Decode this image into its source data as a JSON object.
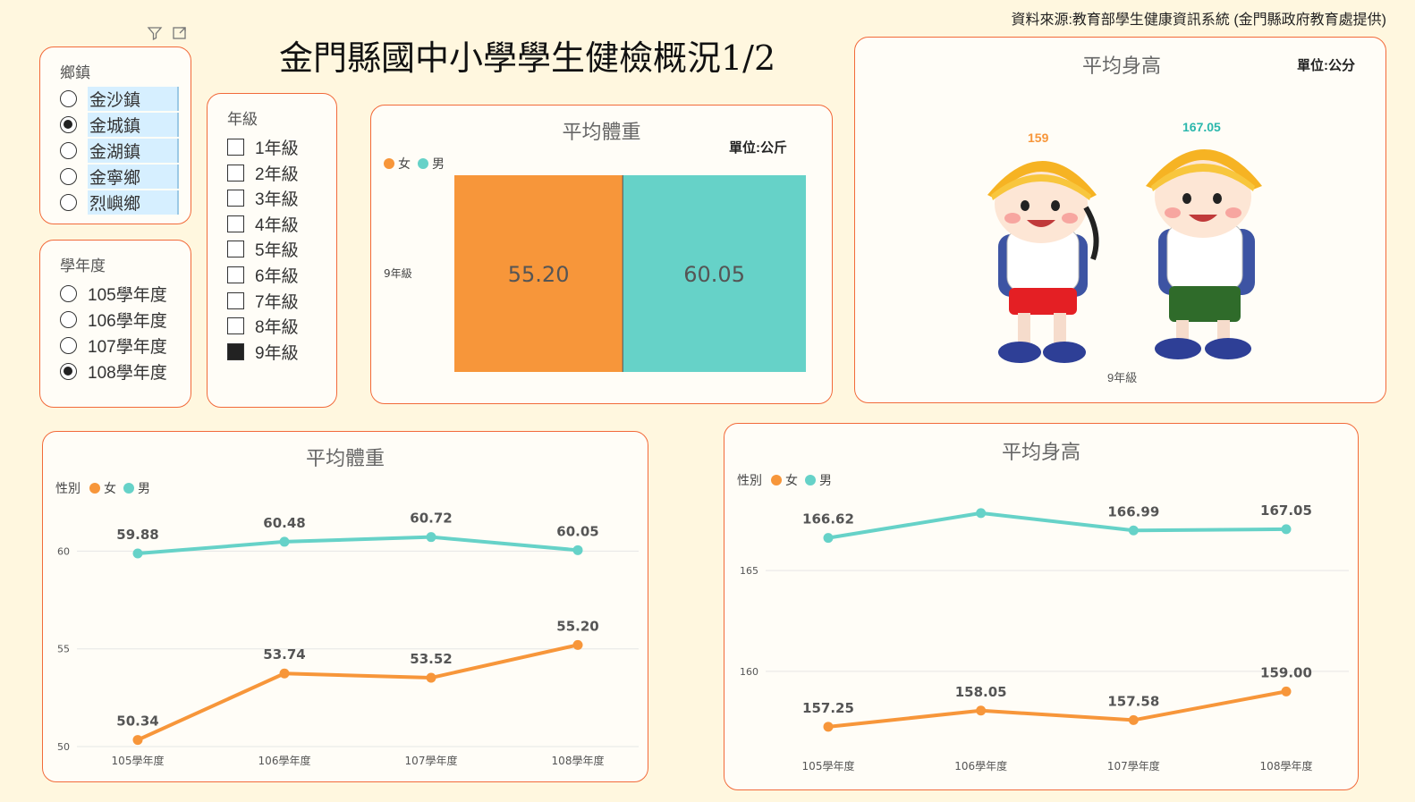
{
  "source": "資料來源:教育部學生健康資訊系統 (金門縣政府教育處提供)",
  "page_title": "金門縣國中小學學生健檢概況1/2",
  "colors": {
    "female": "#f7963a",
    "male": "#66d2c8",
    "border": "#f26a3a"
  },
  "icons": {
    "filter": "filter-icon",
    "focus": "focus-mode-icon"
  },
  "township_slicer": {
    "title": "鄉鎮",
    "options": [
      {
        "label": "金沙鎮",
        "selected": false
      },
      {
        "label": "金城鎮",
        "selected": true
      },
      {
        "label": "金湖鎮",
        "selected": false
      },
      {
        "label": "金寧鄉",
        "selected": false
      },
      {
        "label": "烈嶼鄉",
        "selected": false
      }
    ]
  },
  "year_slicer": {
    "title": "學年度",
    "options": [
      {
        "label": "105學年度",
        "selected": false
      },
      {
        "label": "106學年度",
        "selected": false
      },
      {
        "label": "107學年度",
        "selected": false
      },
      {
        "label": "108學年度",
        "selected": true
      }
    ]
  },
  "grade_slicer": {
    "title": "年級",
    "options": [
      {
        "label": "1年級",
        "selected": false
      },
      {
        "label": "2年級",
        "selected": false
      },
      {
        "label": "3年級",
        "selected": false
      },
      {
        "label": "4年級",
        "selected": false
      },
      {
        "label": "5年級",
        "selected": false
      },
      {
        "label": "6年級",
        "selected": false
      },
      {
        "label": "7年級",
        "selected": false
      },
      {
        "label": "8年級",
        "selected": false
      },
      {
        "label": "9年級",
        "selected": true
      }
    ]
  },
  "avg_height_card": {
    "title": "平均身高",
    "unit": "單位:公分",
    "female_value": "159",
    "male_value": "167.05",
    "category": "9年級"
  },
  "chart_data": [
    {
      "id": "weight_bar",
      "type": "bar",
      "title": "平均體重",
      "unit": "單位:公斤",
      "categories": [
        "9年級"
      ],
      "series": [
        {
          "name": "女",
          "values": [
            55.2
          ],
          "label": "55.20"
        },
        {
          "name": "男",
          "values": [
            60.05
          ],
          "label": "60.05"
        }
      ]
    },
    {
      "id": "weight_line",
      "type": "line",
      "title": "平均體重",
      "legend_title": "性別",
      "categories": [
        "105學年度",
        "106學年度",
        "107學年度",
        "108學年度"
      ],
      "ylim": [
        50,
        61.3
      ],
      "yticks": [
        50,
        55,
        60
      ],
      "series": [
        {
          "name": "女",
          "values": [
            50.34,
            53.74,
            53.52,
            55.2
          ],
          "labels": [
            "50.34",
            "53.74",
            "53.52",
            "55.20"
          ]
        },
        {
          "name": "男",
          "values": [
            59.88,
            60.48,
            60.72,
            60.05
          ],
          "labels": [
            "59.88",
            "60.48",
            "60.72",
            "60.05"
          ]
        }
      ]
    },
    {
      "id": "height_line",
      "type": "line",
      "title": "平均身高",
      "legend_title": "性別",
      "categories": [
        "105學年度",
        "106學年度",
        "107學年度",
        "108學年度"
      ],
      "ylim": [
        156,
        168.2
      ],
      "yticks": [
        160,
        165
      ],
      "series": [
        {
          "name": "女",
          "values": [
            157.25,
            158.05,
            157.58,
            159.0
          ],
          "labels": [
            "157.25",
            "158.05",
            "157.58",
            "159.00"
          ]
        },
        {
          "name": "男",
          "values": [
            166.62,
            167.85,
            166.99,
            167.05
          ],
          "labels": [
            "166.62",
            "",
            "166.99",
            "167.05"
          ]
        }
      ]
    }
  ]
}
